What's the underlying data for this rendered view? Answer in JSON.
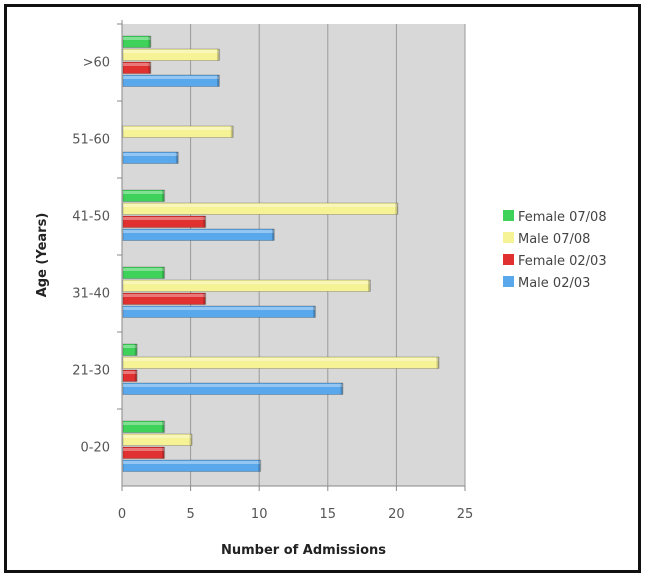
{
  "chart_data": {
    "type": "bar",
    "orientation": "horizontal",
    "categories": [
      "0-20",
      "21-30",
      "31-40",
      "41-50",
      "51-60",
      ">60"
    ],
    "series": [
      {
        "name": "Male 02/03",
        "color": "#5aa8ec",
        "values": [
          10,
          16,
          14,
          11,
          4,
          7
        ]
      },
      {
        "name": "Female 02/03",
        "color": "#e03030",
        "values": [
          3,
          1,
          6,
          6,
          0,
          2
        ]
      },
      {
        "name": "Male 07/08",
        "color": "#f6f296",
        "values": [
          5,
          23,
          18,
          20,
          8,
          7
        ]
      },
      {
        "name": "Female 07/08",
        "color": "#3ed25a",
        "values": [
          3,
          1,
          3,
          3,
          0,
          2
        ]
      }
    ],
    "xlabel": "Number of Admissions",
    "ylabel": "Age (Years)",
    "xlim": [
      0,
      25
    ],
    "xticks": [
      0,
      5,
      10,
      15,
      20,
      25
    ],
    "grid": true,
    "plot_background": "#d8d8d8",
    "legend_position": "right",
    "legend": [
      "Female 07/08",
      "Male 07/08",
      "Female 02/03",
      "Male 02/03"
    ]
  }
}
